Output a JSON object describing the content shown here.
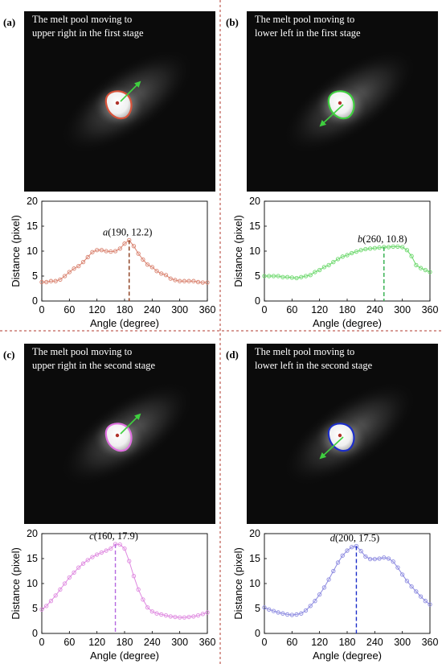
{
  "panels": [
    {
      "label": "(a)",
      "caption_lines": [
        "The melt pool moving to",
        "upper right in the first stage"
      ],
      "arrow": "upper-right",
      "contour_color": "#d9533a",
      "chart": {
        "type": "line",
        "xlabel": "Angle (degree)",
        "ylabel": "Distance (pixel)",
        "xlim": [
          0,
          360
        ],
        "ylim": [
          0,
          20
        ],
        "xticks": [
          0,
          60,
          120,
          180,
          240,
          300,
          360
        ],
        "yticks": [
          0,
          5,
          10,
          15,
          20
        ],
        "color": "#d9826f",
        "marker_line_color": "#8b3a1a",
        "annotation": {
          "point": "a",
          "coords": "(190, 12.2)",
          "x": 190,
          "y": 12.2
        },
        "x": [
          0,
          10,
          20,
          30,
          40,
          50,
          60,
          70,
          80,
          90,
          100,
          110,
          120,
          130,
          140,
          150,
          160,
          170,
          180,
          190,
          200,
          210,
          220,
          230,
          240,
          250,
          260,
          270,
          280,
          290,
          300,
          310,
          320,
          330,
          340,
          350,
          360
        ],
        "y": [
          3.8,
          3.8,
          4.0,
          4.0,
          4.3,
          5.0,
          5.8,
          6.5,
          7.0,
          7.8,
          8.8,
          9.8,
          10.2,
          10.2,
          10.0,
          9.9,
          10.0,
          10.5,
          11.5,
          12.2,
          11.0,
          9.5,
          8.3,
          7.3,
          6.8,
          6.0,
          5.5,
          5.2,
          4.5,
          4.2,
          4.0,
          4.0,
          4.0,
          4.0,
          3.8,
          3.7,
          3.7
        ]
      }
    },
    {
      "label": "(b)",
      "caption_lines": [
        "The melt pool moving to",
        "lower left in the first stage"
      ],
      "arrow": "lower-left",
      "contour_color": "#3fcf3f",
      "chart": {
        "type": "line",
        "xlabel": "Angle (degree)",
        "ylabel": "Distance (pixel)",
        "xlim": [
          0,
          360
        ],
        "ylim": [
          0,
          20
        ],
        "xticks": [
          0,
          60,
          120,
          180,
          240,
          300,
          360
        ],
        "yticks": [
          0,
          5,
          10,
          15,
          20
        ],
        "color": "#6bd86b",
        "marker_line_color": "#2fae4a",
        "annotation": {
          "point": "b",
          "coords": "(260, 10.8)",
          "x": 260,
          "y": 10.8
        },
        "x": [
          0,
          10,
          20,
          30,
          40,
          50,
          60,
          70,
          80,
          90,
          100,
          110,
          120,
          130,
          140,
          150,
          160,
          170,
          180,
          190,
          200,
          210,
          220,
          230,
          240,
          250,
          260,
          270,
          280,
          290,
          300,
          310,
          320,
          330,
          340,
          350,
          360
        ],
        "y": [
          5.0,
          5.0,
          5.0,
          5.0,
          4.8,
          4.8,
          4.7,
          4.6,
          4.8,
          5.0,
          5.2,
          5.8,
          6.2,
          6.8,
          7.2,
          7.8,
          8.4,
          8.9,
          9.2,
          9.6,
          9.9,
          10.2,
          10.4,
          10.5,
          10.6,
          10.7,
          10.8,
          10.8,
          10.9,
          10.9,
          10.8,
          10.2,
          9.0,
          7.2,
          6.6,
          6.2,
          5.8
        ]
      }
    },
    {
      "label": "(c)",
      "caption_lines": [
        "The melt pool moving to",
        "upper right in the second stage"
      ],
      "arrow": "upper-right",
      "contour_color": "#e070e0",
      "chart": {
        "type": "line",
        "xlabel": "Angle (degree)",
        "ylabel": "Distance (pixel)",
        "xlim": [
          0,
          360
        ],
        "ylim": [
          0,
          20
        ],
        "xticks": [
          0,
          60,
          120,
          180,
          240,
          300,
          360
        ],
        "yticks": [
          0,
          5,
          10,
          15,
          20
        ],
        "color": "#df8ae0",
        "marker_line_color": "#b569e0",
        "annotation": {
          "point": "c",
          "coords": "(160, 17.9)",
          "x": 160,
          "y": 17.9
        },
        "x": [
          0,
          10,
          20,
          30,
          40,
          50,
          60,
          70,
          80,
          90,
          100,
          110,
          120,
          130,
          140,
          150,
          160,
          170,
          180,
          190,
          200,
          210,
          220,
          230,
          240,
          250,
          260,
          270,
          280,
          290,
          300,
          310,
          320,
          330,
          340,
          350,
          360
        ],
        "y": [
          4.8,
          5.5,
          6.5,
          7.6,
          8.8,
          10.0,
          11.2,
          12.2,
          13.2,
          14.0,
          14.7,
          15.3,
          15.8,
          16.2,
          16.6,
          17.0,
          17.9,
          17.8,
          17.0,
          14.5,
          11.5,
          8.8,
          6.8,
          5.2,
          4.4,
          4.0,
          3.8,
          3.6,
          3.4,
          3.3,
          3.2,
          3.2,
          3.3,
          3.4,
          3.6,
          3.9,
          4.2
        ]
      }
    },
    {
      "label": "(d)",
      "caption_lines": [
        "The melt pool moving to",
        "lower left in the second stage"
      ],
      "arrow": "lower-left",
      "contour_color": "#1c2ec9",
      "chart": {
        "type": "line",
        "xlabel": "Angle (degree)",
        "ylabel": "Distance (pixel)",
        "xlim": [
          0,
          360
        ],
        "ylim": [
          0,
          20
        ],
        "xticks": [
          0,
          60,
          120,
          180,
          240,
          300,
          360
        ],
        "yticks": [
          0,
          5,
          10,
          15,
          20
        ],
        "color": "#8c8ae0",
        "marker_line_color": "#1c2ec9",
        "annotation": {
          "point": "d",
          "coords": "(200, 17.5)",
          "x": 200,
          "y": 17.5
        },
        "x": [
          0,
          10,
          20,
          30,
          40,
          50,
          60,
          70,
          80,
          90,
          100,
          110,
          120,
          130,
          140,
          150,
          160,
          170,
          180,
          190,
          200,
          210,
          220,
          230,
          240,
          250,
          260,
          270,
          280,
          290,
          300,
          310,
          320,
          330,
          340,
          350,
          360
        ],
        "y": [
          5.2,
          4.8,
          4.5,
          4.2,
          4.0,
          3.8,
          3.7,
          3.8,
          4.0,
          4.6,
          5.5,
          6.5,
          7.8,
          9.2,
          10.8,
          12.5,
          14.2,
          15.6,
          16.6,
          17.3,
          17.5,
          16.5,
          15.4,
          14.9,
          14.9,
          15.0,
          15.2,
          15.0,
          14.4,
          13.2,
          11.8,
          10.5,
          9.4,
          8.4,
          7.4,
          6.5,
          5.8
        ]
      }
    }
  ],
  "chart_data": [
    {
      "type": "line",
      "xlabel": "Angle (degree)",
      "ylabel": "Distance (pixel)",
      "xlim": [
        0,
        360
      ],
      "ylim": [
        0,
        20
      ],
      "annotation": "a(190, 12.2)",
      "x": [
        0,
        10,
        20,
        30,
        40,
        50,
        60,
        70,
        80,
        90,
        100,
        110,
        120,
        130,
        140,
        150,
        160,
        170,
        180,
        190,
        200,
        210,
        220,
        230,
        240,
        250,
        260,
        270,
        280,
        290,
        300,
        310,
        320,
        330,
        340,
        350,
        360
      ],
      "y": [
        3.8,
        3.8,
        4.0,
        4.0,
        4.3,
        5.0,
        5.8,
        6.5,
        7.0,
        7.8,
        8.8,
        9.8,
        10.2,
        10.2,
        10.0,
        9.9,
        10.0,
        10.5,
        11.5,
        12.2,
        11.0,
        9.5,
        8.3,
        7.3,
        6.8,
        6.0,
        5.5,
        5.2,
        4.5,
        4.2,
        4.0,
        4.0,
        4.0,
        4.0,
        3.8,
        3.7,
        3.7
      ]
    },
    {
      "type": "line",
      "xlabel": "Angle (degree)",
      "ylabel": "Distance (pixel)",
      "xlim": [
        0,
        360
      ],
      "ylim": [
        0,
        20
      ],
      "annotation": "b(260, 10.8)",
      "x": [
        0,
        10,
        20,
        30,
        40,
        50,
        60,
        70,
        80,
        90,
        100,
        110,
        120,
        130,
        140,
        150,
        160,
        170,
        180,
        190,
        200,
        210,
        220,
        230,
        240,
        250,
        260,
        270,
        280,
        290,
        300,
        310,
        320,
        330,
        340,
        350,
        360
      ],
      "y": [
        5.0,
        5.0,
        5.0,
        5.0,
        4.8,
        4.8,
        4.7,
        4.6,
        4.8,
        5.0,
        5.2,
        5.8,
        6.2,
        6.8,
        7.2,
        7.8,
        8.4,
        8.9,
        9.2,
        9.6,
        9.9,
        10.2,
        10.4,
        10.5,
        10.6,
        10.7,
        10.8,
        10.8,
        10.9,
        10.9,
        10.8,
        10.2,
        9.0,
        7.2,
        6.6,
        6.2,
        5.8
      ]
    },
    {
      "type": "line",
      "xlabel": "Angle (degree)",
      "ylabel": "Distance (pixel)",
      "xlim": [
        0,
        360
      ],
      "ylim": [
        0,
        20
      ],
      "annotation": "c(160, 17.9)",
      "x": [
        0,
        10,
        20,
        30,
        40,
        50,
        60,
        70,
        80,
        90,
        100,
        110,
        120,
        130,
        140,
        150,
        160,
        170,
        180,
        190,
        200,
        210,
        220,
        230,
        240,
        250,
        260,
        270,
        280,
        290,
        300,
        310,
        320,
        330,
        340,
        350,
        360
      ],
      "y": [
        4.8,
        5.5,
        6.5,
        7.6,
        8.8,
        10.0,
        11.2,
        12.2,
        13.2,
        14.0,
        14.7,
        15.3,
        15.8,
        16.2,
        16.6,
        17.0,
        17.9,
        17.8,
        17.0,
        14.5,
        11.5,
        8.8,
        6.8,
        5.2,
        4.4,
        4.0,
        3.8,
        3.6,
        3.4,
        3.3,
        3.2,
        3.2,
        3.3,
        3.4,
        3.6,
        3.9,
        4.2
      ]
    },
    {
      "type": "line",
      "xlabel": "Angle (degree)",
      "ylabel": "Distance (pixel)",
      "xlim": [
        0,
        360
      ],
      "ylim": [
        0,
        20
      ],
      "annotation": "d(200, 17.5)",
      "x": [
        0,
        10,
        20,
        30,
        40,
        50,
        60,
        70,
        80,
        90,
        100,
        110,
        120,
        130,
        140,
        150,
        160,
        170,
        180,
        190,
        200,
        210,
        220,
        230,
        240,
        250,
        260,
        270,
        280,
        290,
        300,
        310,
        320,
        330,
        340,
        350,
        360
      ],
      "y": [
        5.2,
        4.8,
        4.5,
        4.2,
        4.0,
        3.8,
        3.7,
        3.8,
        4.0,
        4.6,
        5.5,
        6.5,
        7.8,
        9.2,
        10.8,
        12.5,
        14.2,
        15.6,
        16.6,
        17.3,
        17.5,
        16.5,
        15.4,
        14.9,
        14.9,
        15.0,
        15.2,
        15.0,
        14.4,
        13.2,
        11.8,
        10.5,
        9.4,
        8.4,
        7.4,
        6.5,
        5.8
      ]
    }
  ]
}
